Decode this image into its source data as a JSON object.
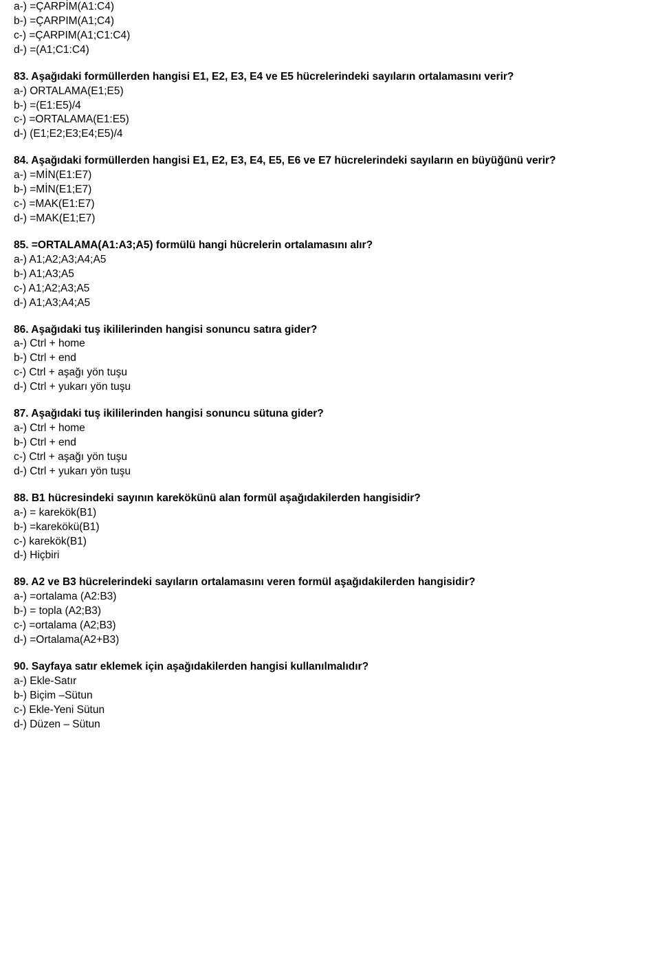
{
  "blocks": [
    {
      "lines": [
        {
          "text": "a-) =ÇARPİM(A1:C4)",
          "bold": false
        },
        {
          "text": "b-) =ÇARPIM(A1;C4)",
          "bold": false
        },
        {
          "text": "c-) =ÇARPIM(A1;C1:C4)",
          "bold": false
        },
        {
          "text": "d-) =(A1;C1:C4)",
          "bold": false
        }
      ]
    },
    {
      "lines": [
        {
          "text": "83. Aşağıdaki formüllerden hangisi E1, E2, E3, E4 ve E5 hücrelerindeki sayıların ortalamasını verir?",
          "bold": true
        },
        {
          "text": "a-) ORTALAMA(E1;E5)",
          "bold": false
        },
        {
          "text": "b-) =(E1:E5)/4",
          "bold": false
        },
        {
          "text": "c-) =ORTALAMA(E1:E5)",
          "bold": false
        },
        {
          "text": "d-) (E1;E2;E3;E4;E5)/4",
          "bold": false
        }
      ]
    },
    {
      "lines": [
        {
          "text": "84. Aşağıdaki formüllerden hangisi E1, E2, E3, E4, E5, E6 ve E7 hücrelerindeki sayıların en büyüğünü verir?",
          "bold": true
        },
        {
          "text": "a-) =MİN(E1:E7)",
          "bold": false
        },
        {
          "text": "b-) =MİN(E1;E7)",
          "bold": false
        },
        {
          "text": "c-) =MAK(E1:E7)",
          "bold": false
        },
        {
          "text": "d-) =MAK(E1;E7)",
          "bold": false
        }
      ]
    },
    {
      "lines": [
        {
          "text": "85. =ORTALAMA(A1:A3;A5) formülü hangi hücrelerin ortalamasını alır?",
          "bold": true
        },
        {
          "text": "a-) A1;A2;A3;A4;A5",
          "bold": false
        },
        {
          "text": "b-) A1;A3;A5",
          "bold": false
        },
        {
          "text": "c-) A1;A2;A3;A5",
          "bold": false
        },
        {
          "text": "d-) A1;A3;A4;A5",
          "bold": false
        }
      ]
    },
    {
      "lines": [
        {
          "text": "86. Aşağıdaki tuş ikililerinden hangisi sonuncu satıra gider?",
          "bold": true
        },
        {
          "text": "a-) Ctrl + home",
          "bold": false
        },
        {
          "text": "b-) Ctrl + end",
          "bold": false
        },
        {
          "text": "c-) Ctrl + aşağı yön tuşu",
          "bold": false
        },
        {
          "text": "d-) Ctrl + yukarı yön tuşu",
          "bold": false
        }
      ]
    },
    {
      "lines": [
        {
          "text": "87. Aşağıdaki tuş ikililerinden hangisi sonuncu sütuna gider?",
          "bold": true
        },
        {
          "text": "a-) Ctrl + home",
          "bold": false
        },
        {
          "text": "b-) Ctrl + end",
          "bold": false
        },
        {
          "text": "c-) Ctrl + aşağı yön tuşu",
          "bold": false
        },
        {
          "text": "d-) Ctrl + yukarı yön tuşu",
          "bold": false
        }
      ]
    },
    {
      "lines": [
        {
          "text": "88. B1 hücresindeki sayının karekökünü alan formül aşağıdakilerden hangisidir?",
          "bold": true
        },
        {
          "text": "a-) = karekök(B1)",
          "bold": false
        },
        {
          "text": "b-) =karekökü(B1)",
          "bold": false
        },
        {
          "text": "c-) karekök(B1)",
          "bold": false
        },
        {
          "text": "d-) Hiçbiri",
          "bold": false
        }
      ]
    },
    {
      "lines": [
        {
          "text": "89. A2 ve B3 hücrelerindeki sayıların ortalamasını veren formül aşağıdakilerden hangisidir?",
          "bold": true
        },
        {
          "text": "a-) =ortalama (A2:B3)",
          "bold": false
        },
        {
          "text": "b-) = topla (A2;B3)",
          "bold": false
        },
        {
          "text": "c-) =ortalama (A2;B3)",
          "bold": false
        },
        {
          "text": "d-) =Ortalama(A2+B3)",
          "bold": false
        }
      ]
    },
    {
      "lines": [
        {
          "text": "90. Sayfaya satır eklemek için aşağıdakilerden hangisi kullanılmalıdır?",
          "bold": true
        },
        {
          "text": "a-) Ekle-Satır",
          "bold": false
        },
        {
          "text": "b-) Biçim –Sütun",
          "bold": false
        },
        {
          "text": "c-) Ekle-Yeni Sütun",
          "bold": false
        },
        {
          "text": "d-) Düzen – Sütun",
          "bold": false
        }
      ]
    }
  ]
}
